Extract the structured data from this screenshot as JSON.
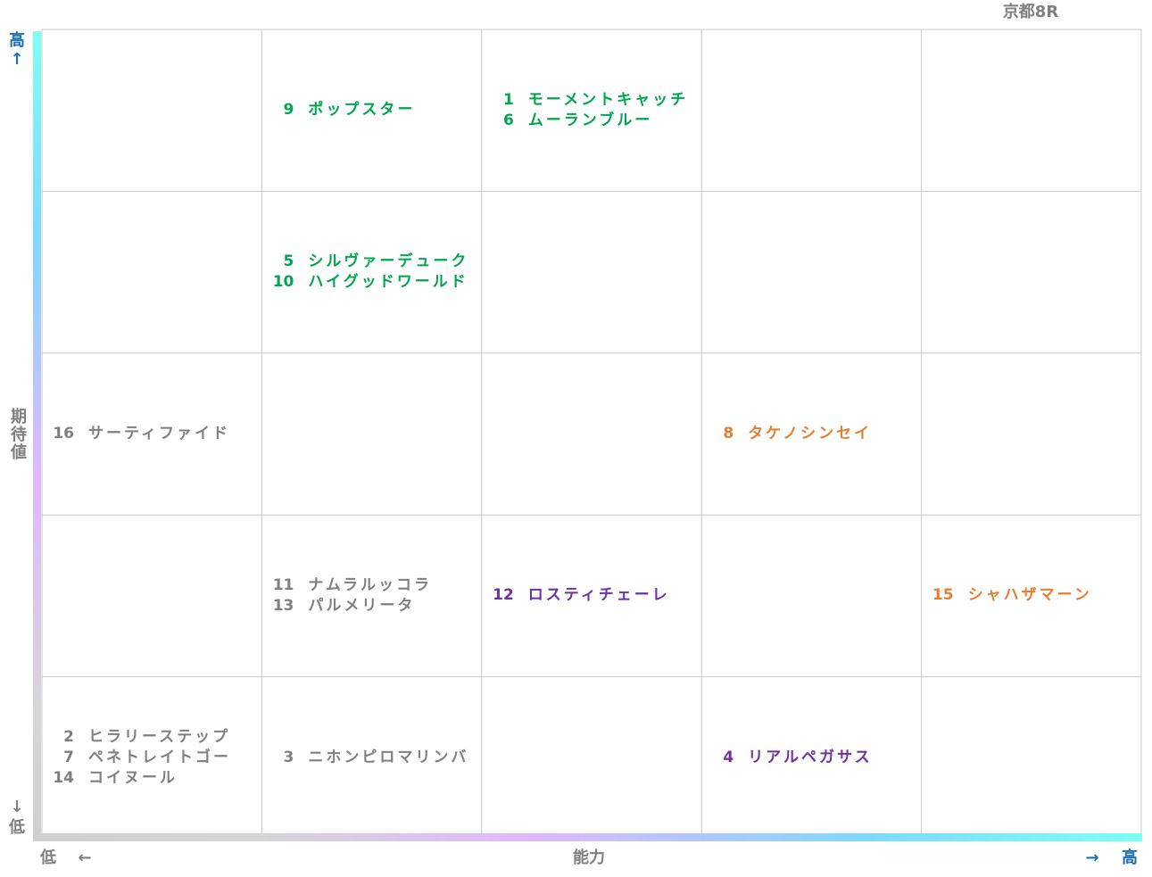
{
  "header": {
    "title": "京都8R"
  },
  "y_axis": {
    "high": "高",
    "up_arrow": "↑",
    "label": "期待値",
    "down_arrow": "↓",
    "low": "低"
  },
  "x_axis": {
    "low": "低",
    "left_arrow": "←",
    "label": "能力",
    "right_arrow": "→",
    "high": "高"
  },
  "grid": {
    "rows": [
      [
        [],
        [
          {
            "number": "9",
            "name": "ポップスター",
            "color": "#00a550"
          }
        ],
        [
          {
            "number": "1",
            "name": "モーメントキャッチ",
            "color": "#00a550"
          },
          {
            "number": "6",
            "name": "ムーランブルー",
            "color": "#00a550"
          }
        ],
        [],
        []
      ],
      [
        [],
        [
          {
            "number": "5",
            "name": "シルヴァーデューク",
            "color": "#00a550"
          },
          {
            "number": "10",
            "name": "ハイグッドワールド",
            "color": "#00a550"
          }
        ],
        [],
        [],
        []
      ],
      [
        [
          {
            "number": "16",
            "name": "サーティファイド",
            "color": "#7f7f7f"
          }
        ],
        [],
        [],
        [
          {
            "number": "8",
            "name": "タケノシンセイ",
            "color": "#e57d32"
          }
        ],
        []
      ],
      [
        [],
        [
          {
            "number": "11",
            "name": "ナムラルッコラ",
            "color": "#7f7f7f"
          },
          {
            "number": "13",
            "name": "パルメリータ",
            "color": "#7f7f7f"
          }
        ],
        [
          {
            "number": "12",
            "name": "ロスティチェーレ",
            "color": "#7030a0"
          }
        ],
        [],
        [
          {
            "number": "15",
            "name": "シャハザマーン",
            "color": "#e57d32"
          }
        ]
      ],
      [
        [
          {
            "number": "2",
            "name": "ヒラリーステップ",
            "color": "#7f7f7f"
          },
          {
            "number": "7",
            "name": "ペネトレイトゴー",
            "color": "#7f7f7f"
          },
          {
            "number": "14",
            "name": "コイヌール",
            "color": "#7f7f7f"
          }
        ],
        [
          {
            "number": "3",
            "name": "ニホンピロマリンバ",
            "color": "#7f7f7f"
          }
        ],
        [],
        [
          {
            "number": "4",
            "name": "リアルペガサス",
            "color": "#7030a0"
          }
        ],
        []
      ]
    ]
  }
}
